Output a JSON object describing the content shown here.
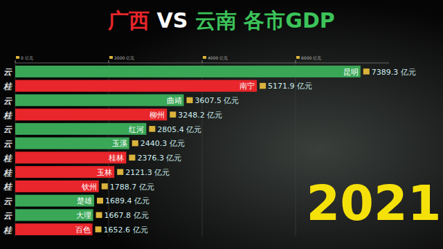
{
  "chart_data": {
    "type": "bar",
    "orientation": "horizontal",
    "title": "广西 VS 云南 各市GDP",
    "subtitle": "2021",
    "categories": [
      "昆明",
      "南宁",
      "曲靖",
      "柳州",
      "红河",
      "玉溪",
      "桂林",
      "玉林",
      "钦州",
      "楚雄",
      "大理",
      "百色"
    ],
    "values": [
      7389.3,
      5171.9,
      3607.5,
      3248.2,
      2805.4,
      2440.3,
      2376.3,
      2121.3,
      1788.7,
      1689.4,
      1667.8,
      1652.6
    ],
    "value_labels": [
      "7389.3 亿元",
      "5171.9 亿元",
      "3607.5 亿元",
      "3248.2 亿元",
      "2805.4 亿元",
      "2440.3 亿元",
      "2376.3 亿元",
      "2121.3 亿元",
      "1788.7 亿元",
      "1689.4 亿元",
      "1667.8 亿元",
      "1652.6 亿元"
    ],
    "row_icons": [
      "云",
      "桂",
      "云",
      "桂",
      "云",
      "云",
      "桂",
      "桂",
      "桂",
      "云",
      "云",
      "桂"
    ],
    "colors": [
      "#3aa757",
      "#e8262b",
      "#3aa757",
      "#e8262b",
      "#3aa757",
      "#3aa757",
      "#e8262b",
      "#e8262b",
      "#e8262b",
      "#3aa757",
      "#3aa757",
      "#e8262b"
    ],
    "xlim": [
      0,
      8000
    ],
    "xticks": [
      {
        "value": 0,
        "label": "0 亿元"
      },
      {
        "value": 2000,
        "label": "2000 亿元"
      },
      {
        "value": 4000,
        "label": "4000 亿元"
      },
      {
        "value": 6000,
        "label": "6000 亿元"
      }
    ],
    "grid": true,
    "data_labels": true
  }
}
